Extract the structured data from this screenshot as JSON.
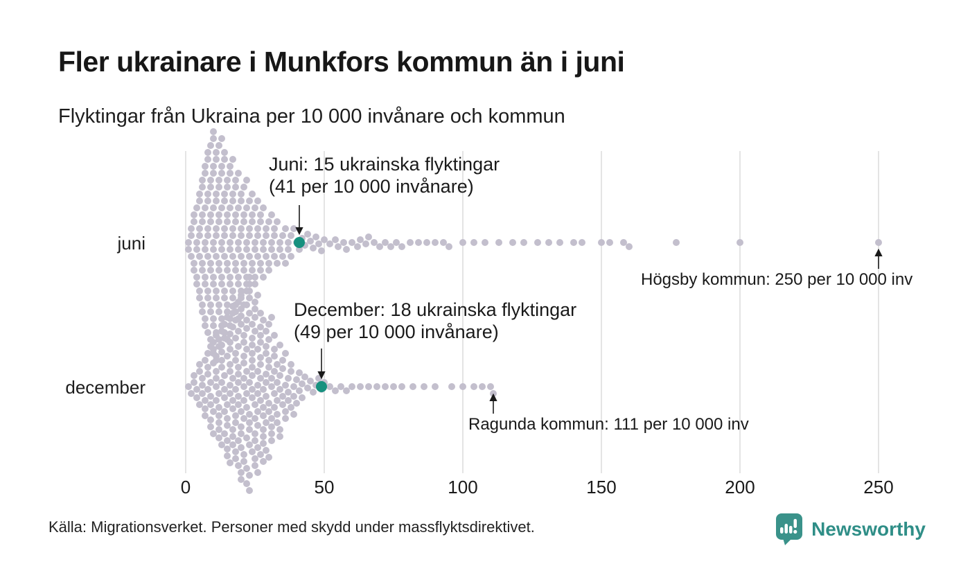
{
  "chart_data": {
    "type": "scatter",
    "variant": "beeswarm",
    "title": "Fler ukrainare i Munkfors kommun än i juni",
    "subtitle": "Flyktingar från Ukraina per 10 000 invånare och kommun",
    "xlabel": "",
    "ylabel": "",
    "xlim": [
      0,
      250
    ],
    "x_ticks": [
      0,
      50,
      100,
      150,
      200,
      250
    ],
    "grid": true,
    "rows": [
      {
        "label": "juni",
        "highlight": {
          "name": "Munkfors kommun",
          "refugees": 15,
          "per_10000": 41
        },
        "outlier": {
          "name": "Högsby kommun",
          "per_10000": 250
        },
        "distribution": [
          [
            1,
            2
          ],
          [
            2,
            3
          ],
          [
            3,
            4
          ],
          [
            4,
            5
          ],
          [
            5,
            7
          ],
          [
            6,
            8
          ],
          [
            7,
            9
          ],
          [
            8,
            10
          ],
          [
            9,
            11
          ],
          [
            10,
            12
          ],
          [
            11,
            11
          ],
          [
            12,
            11
          ],
          [
            13,
            10
          ],
          [
            14,
            10
          ],
          [
            15,
            9
          ],
          [
            16,
            9
          ],
          [
            17,
            8
          ],
          [
            18,
            8
          ],
          [
            19,
            7
          ],
          [
            20,
            7
          ],
          [
            21,
            6
          ],
          [
            22,
            6
          ],
          [
            23,
            5
          ],
          [
            24,
            5
          ],
          [
            25,
            5
          ],
          [
            26,
            4
          ],
          [
            27,
            4
          ],
          [
            28,
            4
          ],
          [
            29,
            3
          ],
          [
            30,
            3
          ],
          [
            31,
            3
          ],
          [
            32,
            3
          ],
          [
            33,
            2
          ],
          [
            34,
            2
          ],
          [
            35,
            2
          ],
          [
            36,
            2
          ],
          [
            37,
            2
          ],
          [
            38,
            2
          ],
          [
            39,
            1
          ],
          [
            40,
            1
          ],
          [
            41,
            1
          ],
          [
            42,
            1
          ],
          [
            43,
            1
          ],
          [
            44,
            1
          ],
          [
            45,
            1
          ],
          [
            46,
            1
          ],
          [
            47,
            1
          ],
          [
            48,
            1
          ],
          [
            49,
            1
          ],
          [
            50,
            1
          ],
          [
            52,
            1
          ],
          [
            54,
            1
          ],
          [
            55,
            1
          ],
          [
            57,
            1
          ],
          [
            58,
            1
          ],
          [
            60,
            1
          ],
          [
            62,
            1
          ],
          [
            63,
            1
          ],
          [
            65,
            1
          ],
          [
            66,
            1
          ],
          [
            68,
            1
          ],
          [
            70,
            1
          ],
          [
            72,
            1
          ],
          [
            74,
            1
          ],
          [
            76,
            1
          ],
          [
            78,
            1
          ],
          [
            81,
            1
          ],
          [
            84,
            1
          ],
          [
            87,
            1
          ],
          [
            90,
            1
          ],
          [
            93,
            1
          ],
          [
            95,
            1
          ],
          [
            100,
            1
          ],
          [
            104,
            1
          ],
          [
            108,
            1
          ],
          [
            113,
            1
          ],
          [
            118,
            1
          ],
          [
            122,
            1
          ],
          [
            127,
            1
          ],
          [
            131,
            1
          ],
          [
            135,
            1
          ],
          [
            140,
            1
          ],
          [
            143,
            1
          ],
          [
            150,
            1
          ],
          [
            153,
            1
          ],
          [
            158,
            1
          ],
          [
            160,
            1
          ],
          [
            177,
            1
          ],
          [
            200,
            1
          ],
          [
            250,
            1
          ]
        ]
      },
      {
        "label": "december",
        "highlight": {
          "name": "Munkfors kommun",
          "refugees": 18,
          "per_10000": 49
        },
        "outlier": {
          "name": "Ragunda kommun",
          "per_10000": 111
        },
        "distribution": [
          [
            1,
            1
          ],
          [
            2,
            1
          ],
          [
            3,
            2
          ],
          [
            4,
            2
          ],
          [
            5,
            3
          ],
          [
            6,
            3
          ],
          [
            7,
            4
          ],
          [
            8,
            4
          ],
          [
            9,
            5
          ],
          [
            10,
            5
          ],
          [
            11,
            6
          ],
          [
            12,
            6
          ],
          [
            13,
            7
          ],
          [
            14,
            7
          ],
          [
            15,
            8
          ],
          [
            16,
            8
          ],
          [
            17,
            9
          ],
          [
            18,
            9
          ],
          [
            19,
            10
          ],
          [
            20,
            10
          ],
          [
            21,
            10
          ],
          [
            22,
            11
          ],
          [
            23,
            11
          ],
          [
            24,
            10
          ],
          [
            25,
            10
          ],
          [
            26,
            9
          ],
          [
            27,
            9
          ],
          [
            28,
            8
          ],
          [
            29,
            8
          ],
          [
            30,
            7
          ],
          [
            31,
            7
          ],
          [
            32,
            6
          ],
          [
            33,
            5
          ],
          [
            34,
            5
          ],
          [
            35,
            4
          ],
          [
            36,
            4
          ],
          [
            37,
            3
          ],
          [
            38,
            3
          ],
          [
            39,
            3
          ],
          [
            40,
            2
          ],
          [
            41,
            2
          ],
          [
            42,
            2
          ],
          [
            43,
            1
          ],
          [
            44,
            1
          ],
          [
            45,
            1
          ],
          [
            46,
            1
          ],
          [
            47,
            1
          ],
          [
            48,
            1
          ],
          [
            49,
            1
          ],
          [
            50,
            1
          ],
          [
            52,
            1
          ],
          [
            54,
            1
          ],
          [
            56,
            1
          ],
          [
            58,
            1
          ],
          [
            60,
            1
          ],
          [
            63,
            1
          ],
          [
            66,
            1
          ],
          [
            69,
            1
          ],
          [
            72,
            1
          ],
          [
            75,
            1
          ],
          [
            78,
            1
          ],
          [
            82,
            1
          ],
          [
            86,
            1
          ],
          [
            90,
            1
          ],
          [
            96,
            1
          ],
          [
            100,
            1
          ],
          [
            104,
            1
          ],
          [
            107,
            1
          ],
          [
            110,
            1
          ],
          [
            111,
            1
          ]
        ]
      }
    ],
    "annotations": {
      "juni_highlight": [
        "Juni: 15 ukrainska flyktingar",
        "(41 per 10 000 invånare)"
      ],
      "december_highlight": [
        "December: 18 ukrainska flyktingar",
        "(49 per 10 000 invånare)"
      ],
      "juni_outlier": "Högsby kommun: 250 per 10 000 inv",
      "december_outlier": "Ragunda kommun: 111 per 10 000 inv"
    },
    "legend": null
  },
  "footer": {
    "source": "Källa: Migrationsverket. Personer med skydd under massflyktsdirektivet.",
    "brand": "Newsworthy"
  },
  "colors": {
    "dot": "#c3bfcd",
    "highlight": "#17917f",
    "grid": "#dcdcdc",
    "text": "#1a1a1a",
    "brand": "#2f8e87"
  }
}
